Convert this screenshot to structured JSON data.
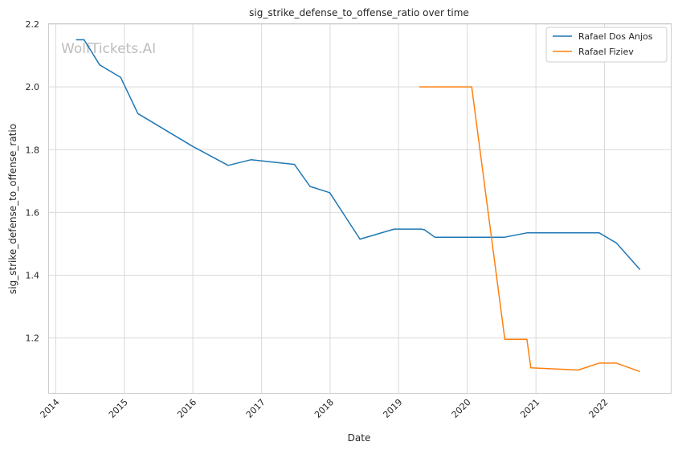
{
  "chart_data": {
    "type": "line",
    "title": "sig_strike_defense_to_offense_ratio over time",
    "xlabel": "Date",
    "ylabel": "sig_strike_defense_to_offense_ratio",
    "watermark": "WolfTickets.AI",
    "xlim": [
      "2013-11-26",
      "2022-12-20"
    ],
    "ylim": [
      1.025,
      2.2
    ],
    "x_ticks": [
      "2014",
      "2015",
      "2016",
      "2017",
      "2018",
      "2019",
      "2020",
      "2021",
      "2022"
    ],
    "y_ticks": [
      "1.2",
      "1.4",
      "1.6",
      "1.8",
      "2.0",
      "2.2"
    ],
    "grid": true,
    "legend_position": "top-right",
    "series": [
      {
        "name": "Rafael Dos Anjos",
        "color": "#1f77b4",
        "points": [
          [
            "2014-04-19",
            2.15
          ],
          [
            "2014-06-01",
            2.15
          ],
          [
            "2014-08-23",
            2.07
          ],
          [
            "2014-12-13",
            2.03
          ],
          [
            "2015-03-14",
            1.915
          ],
          [
            "2016-01-01",
            1.81
          ],
          [
            "2016-07-07",
            1.75
          ],
          [
            "2016-11-05",
            1.768
          ],
          [
            "2017-06-25",
            1.753
          ],
          [
            "2017-09-16",
            1.683
          ],
          [
            "2017-12-30",
            1.663
          ],
          [
            "2018-06-09",
            1.515
          ],
          [
            "2018-12-08",
            1.547
          ],
          [
            "2019-05-01",
            1.547
          ],
          [
            "2019-05-18",
            1.545
          ],
          [
            "2019-07-13",
            1.521
          ],
          [
            "2020-07-18",
            1.521
          ],
          [
            "2020-11-14",
            1.535
          ],
          [
            "2021-12-04",
            1.535
          ],
          [
            "2022-03-05",
            1.503
          ],
          [
            "2022-07-09",
            1.418
          ]
        ]
      },
      {
        "name": "Rafael Fiziev",
        "color": "#ff7f0e",
        "points": [
          [
            "2019-04-20",
            2.0
          ],
          [
            "2020-01-25",
            2.0
          ],
          [
            "2020-07-19",
            1.196
          ],
          [
            "2020-11-14",
            1.196
          ],
          [
            "2020-12-05",
            1.105
          ],
          [
            "2021-08-14",
            1.098
          ],
          [
            "2021-12-04",
            1.12
          ],
          [
            "2022-03-05",
            1.12
          ],
          [
            "2022-07-09",
            1.093
          ]
        ]
      }
    ]
  }
}
